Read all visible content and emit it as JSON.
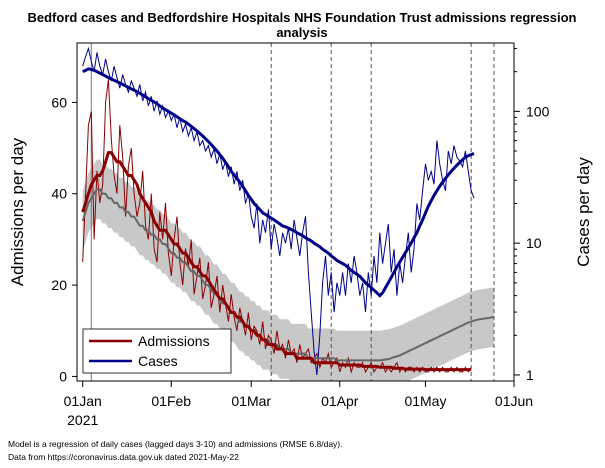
{
  "chart_data": {
    "type": "line",
    "title": "Bedford cases and Bedfordshire Hospitals NHS Foundation Trust admissions regression analysis",
    "title_lines": [
      "Bedford cases and Bedfordshire Hospitals NHS Foundation Trust admissions regression",
      "analysis"
    ],
    "ylabel_left": "Admissions per day",
    "ylabel_right": "Cases per day",
    "xlabel": "",
    "x_tick_labels": [
      "01Jan",
      "01Feb",
      "01Mar",
      "01Apr",
      "01May",
      "01Jun"
    ],
    "x_tick_dates": [
      "2021-01-01",
      "2021-02-01",
      "2021-03-01",
      "2021-04-01",
      "2021-05-01",
      "2021-06-01"
    ],
    "x_year_label": "2021",
    "xlim": [
      "2020-12-30",
      "2021-06-01"
    ],
    "y_left_ticks": [
      0,
      20,
      40,
      60
    ],
    "y_left_lim": [
      -1,
      73
    ],
    "y_right_scale": "log",
    "y_right_ticks": [
      1,
      10,
      100
    ],
    "y_right_lim": [
      0.9,
      330
    ],
    "grid": false,
    "legend_position": "bottom-left",
    "colors": {
      "admissions": "#8b0000",
      "cases": "#00008b",
      "fitted": "#666666",
      "band": "#c8c8c8",
      "vlines": "#555555"
    },
    "vertical_dashed_lines": [
      "2021-03-08",
      "2021-03-29",
      "2021-04-12",
      "2021-05-17",
      "2021-05-25"
    ],
    "solid_vertical_line": "2021-01-04",
    "series": [
      {
        "name": "Admissions",
        "axis": "left",
        "start_date": "2021-01-01",
        "daily": [
          25,
          40,
          55,
          58,
          30,
          45,
          38,
          42,
          60,
          65,
          52,
          44,
          40,
          55,
          48,
          35,
          46,
          50,
          40,
          35,
          38,
          45,
          33,
          30,
          40,
          28,
          25,
          36,
          30,
          38,
          27,
          22,
          30,
          35,
          25,
          20,
          28,
          24,
          30,
          18,
          22,
          26,
          17,
          20,
          25,
          15,
          18,
          22,
          14,
          20,
          16,
          12,
          18,
          13,
          10,
          15,
          12,
          9,
          14,
          8,
          11,
          10,
          7,
          12,
          6,
          9,
          8,
          5,
          10,
          6,
          7,
          4,
          8,
          5,
          6,
          3,
          7,
          4,
          5,
          6,
          3,
          4,
          5,
          2,
          4,
          3,
          5,
          2,
          3,
          4,
          1,
          3,
          2,
          4,
          1,
          3,
          2,
          2,
          3,
          1,
          2,
          3,
          1,
          2,
          2,
          3,
          1,
          2,
          1,
          2,
          3,
          1,
          2,
          1,
          2,
          2,
          1,
          2,
          1,
          2,
          1,
          1,
          2,
          1,
          2,
          1,
          2,
          1,
          1,
          2,
          1,
          2,
          1,
          1,
          2,
          1,
          2
        ],
        "average": [
          36,
          38,
          40,
          42,
          43,
          44,
          44,
          45,
          47,
          49,
          49,
          48,
          47,
          47,
          46,
          45,
          44,
          44,
          43,
          42,
          40,
          39,
          38,
          37,
          36,
          34,
          33,
          32,
          32,
          32,
          31,
          30,
          29,
          29,
          28,
          27,
          27,
          26,
          25,
          24,
          24,
          23,
          22,
          22,
          21,
          20,
          19,
          18,
          17,
          17,
          16,
          15,
          14,
          14,
          13,
          13,
          12,
          11,
          11,
          10,
          10,
          9,
          9,
          8,
          8,
          7,
          7,
          7,
          6,
          6,
          6,
          5,
          5,
          5,
          5,
          4,
          4,
          4,
          4,
          4,
          4,
          3,
          3,
          3,
          3,
          3,
          3,
          3,
          3,
          3,
          2.5,
          2.5,
          2.5,
          2.5,
          2.5,
          2.5,
          2.5,
          2.5,
          2.2,
          2.2,
          2.2,
          2.2,
          2.2,
          2.2,
          2,
          2,
          2,
          2,
          2,
          1.8,
          1.8,
          1.8,
          1.8,
          1.6,
          1.6,
          1.6,
          1.6,
          1.6,
          1.6,
          1.6,
          1.5,
          1.5,
          1.5,
          1.5,
          1.5,
          1.5,
          1.5,
          1.5,
          1.5,
          1.5,
          1.5,
          1.5,
          1.5,
          1.5,
          1.5,
          1.5,
          1.5
        ]
      },
      {
        "name": "Cases",
        "axis": "right",
        "start_date": "2021-01-01",
        "daily": [
          220,
          260,
          300,
          240,
          200,
          280,
          220,
          190,
          250,
          200,
          170,
          220,
          180,
          150,
          190,
          160,
          140,
          170,
          150,
          130,
          160,
          120,
          140,
          110,
          130,
          100,
          120,
          95,
          110,
          90,
          100,
          85,
          95,
          75,
          90,
          70,
          80,
          65,
          75,
          60,
          70,
          55,
          60,
          50,
          55,
          45,
          52,
          40,
          48,
          36,
          42,
          32,
          38,
          28,
          35,
          25,
          30,
          20,
          24,
          16,
          13,
          20,
          10,
          15,
          12,
          18,
          9,
          14,
          11,
          8,
          12,
          10,
          13,
          9,
          15,
          11,
          8,
          12,
          16,
          6,
          3,
          1.5,
          1,
          2,
          5,
          8,
          4,
          6,
          3,
          5,
          4,
          6,
          4,
          7,
          5,
          8,
          6,
          4,
          5,
          3,
          6,
          4,
          8,
          5,
          12,
          7,
          10,
          14,
          6,
          9,
          4,
          7,
          5,
          8,
          12,
          6,
          9,
          20,
          15,
          25,
          40,
          30,
          35,
          28,
          60,
          40,
          30,
          25,
          50,
          40,
          55,
          45,
          42,
          38,
          50,
          35,
          25,
          22
        ],
        "average": [
          200,
          205,
          210,
          208,
          205,
          200,
          195,
          190,
          185,
          180,
          176,
          172,
          168,
          164,
          160,
          156,
          152,
          148,
          145,
          141,
          137,
          133,
          129,
          125,
          121,
          118,
          114,
          110,
          106,
          103,
          100,
          97,
          94,
          91,
          88,
          85,
          83,
          80,
          77,
          74,
          71,
          68,
          65,
          62,
          59,
          56,
          53,
          50,
          47,
          44,
          41,
          38,
          35,
          33,
          31,
          29,
          27,
          25,
          23,
          21.5,
          20,
          19,
          18,
          17,
          16.5,
          16,
          15.5,
          15,
          14.5,
          14,
          13.5,
          13.3,
          13,
          12.7,
          12.4,
          12,
          11.7,
          11.4,
          11,
          10.7,
          10.4,
          10,
          9.7,
          9.4,
          9,
          8.7,
          8.4,
          8,
          7.7,
          7.4,
          7.2,
          7,
          6.8,
          6.5,
          6.2,
          6,
          5.8,
          5.6,
          5.3,
          5,
          4.8,
          4.6,
          4.4,
          4.2,
          4,
          4.2,
          4.6,
          5,
          5.5,
          6,
          6.6,
          7.2,
          7.8,
          8.5,
          9.2,
          10,
          11,
          12,
          13.5,
          15,
          17,
          19,
          21,
          23,
          25,
          27,
          29,
          31,
          33,
          35,
          37,
          39,
          41,
          43,
          45,
          46,
          47,
          48
        ]
      },
      {
        "name": "Fitted admissions",
        "axis": "left",
        "start_date": "2021-01-01",
        "values": [
          34,
          36,
          38,
          39,
          40,
          41,
          41,
          40,
          40,
          39,
          39,
          38,
          38,
          37,
          37,
          36,
          36,
          35,
          35,
          34,
          33,
          33,
          32,
          32,
          31,
          31,
          30,
          30,
          29,
          29,
          28,
          27,
          27,
          26,
          26,
          25,
          25,
          24,
          23,
          23,
          22,
          22,
          21,
          20,
          20,
          19,
          18,
          18,
          17,
          16,
          16,
          15,
          14,
          14,
          13,
          12,
          12,
          11,
          11,
          10,
          10,
          9,
          9,
          8,
          8,
          8,
          7,
          7,
          7,
          6,
          6,
          6,
          6,
          5,
          5,
          5,
          5,
          5,
          5,
          4,
          4,
          4,
          4,
          4,
          4,
          4,
          4,
          4,
          4,
          3.5,
          3.5,
          3.5,
          3.5,
          3.5,
          3.5,
          3.5,
          3.5,
          3.5,
          3.5,
          3.5,
          3.5,
          3.5,
          3.5,
          3.5,
          3.5,
          3.6,
          3.7,
          3.8,
          4,
          4.2,
          4.4,
          4.6,
          4.9,
          5.2,
          5.5,
          5.8,
          6.1,
          6.4,
          6.7,
          7,
          7.3,
          7.6,
          7.9,
          8.2,
          8.5,
          8.8,
          9.1,
          9.4,
          9.7,
          10,
          10.3,
          10.6,
          10.9,
          11.2,
          11.5,
          11.8,
          12,
          12.2,
          12.4,
          12.5,
          12.6,
          12.7,
          12.8,
          12.9,
          13
        ]
      }
    ]
  },
  "notes": [
    "Model is a regression of daily cases (lagged days 3-10) and admissions (RMSE 6.8/day).",
    "Data from https://coronavirus.data.gov.uk dated 2021-May-22"
  ]
}
